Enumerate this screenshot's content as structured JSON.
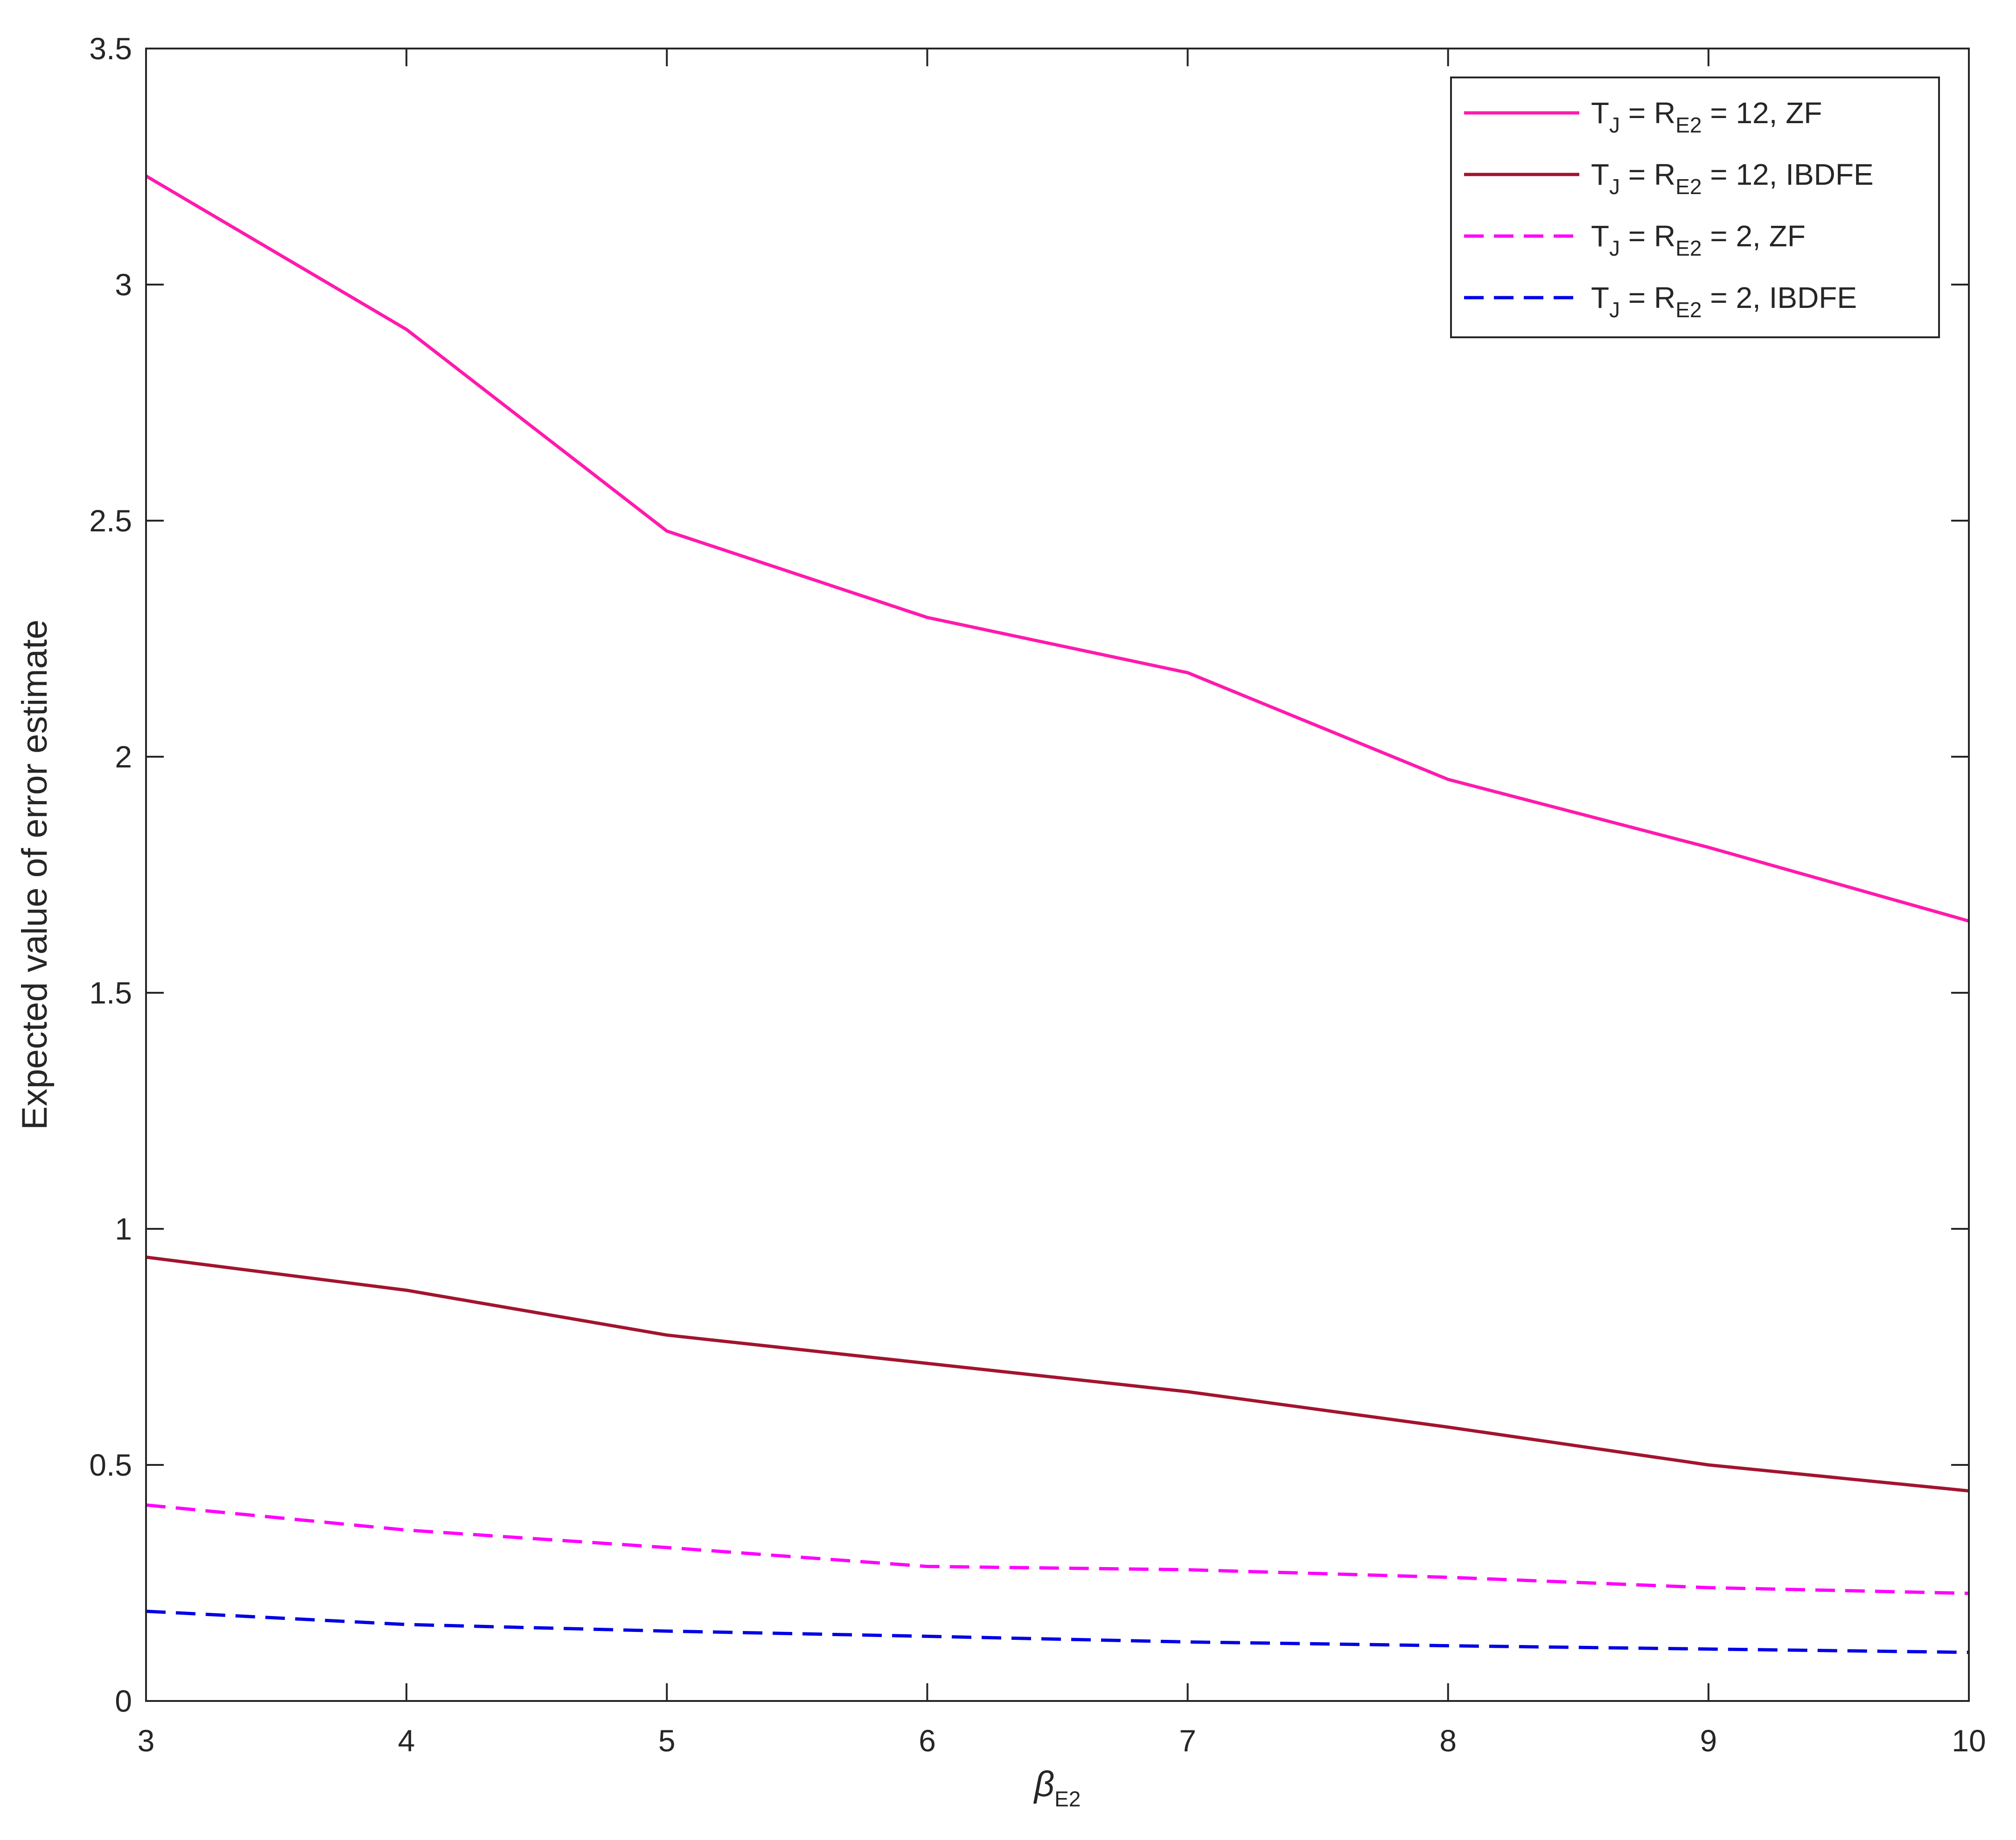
{
  "chart_data": {
    "type": "line",
    "title": "",
    "xlabel": {
      "symbol": "β",
      "subscript": "E2"
    },
    "ylabel": "Expected value of error estimate",
    "xlim": [
      3,
      10
    ],
    "ylim": [
      0,
      3.5
    ],
    "xticks": [
      "3",
      "4",
      "5",
      "6",
      "7",
      "8",
      "9",
      "10"
    ],
    "yticks": [
      "0",
      "0.5",
      "1",
      "1.5",
      "2",
      "2.5",
      "3",
      "3.5"
    ],
    "grid": false,
    "legend_position": "top-right",
    "x": [
      3,
      4,
      5,
      6,
      7,
      8,
      9,
      10
    ],
    "series": [
      {
        "name": "T_J = R_E2 = 12, ZF",
        "legend": {
          "a": "T",
          "a_sub": "J",
          "b": " = R",
          "b_sub": "E2",
          "c": " = 12, ZF"
        },
        "color": "#FF1AAD",
        "dashed": false,
        "values": [
          3.23,
          2.905,
          2.478,
          2.295,
          2.178,
          1.952,
          1.808,
          1.652
        ]
      },
      {
        "name": "T_J = R_E2 = 12, IBDFE",
        "legend": {
          "a": "T",
          "a_sub": "J",
          "b": " = R",
          "b_sub": "E2",
          "c": " = 12, IBDFE"
        },
        "color": "#A2142F",
        "dashed": false,
        "values": [
          0.94,
          0.87,
          0.775,
          0.715,
          0.655,
          0.58,
          0.5,
          0.445
        ]
      },
      {
        "name": "T_J = R_E2 = 2, ZF",
        "legend": {
          "a": "T",
          "a_sub": "J",
          "b": " = R",
          "b_sub": "E2",
          "c": " = 2, ZF"
        },
        "color": "#FF00FF",
        "dashed": true,
        "values": [
          0.415,
          0.362,
          0.325,
          0.285,
          0.278,
          0.262,
          0.24,
          0.228
        ]
      },
      {
        "name": "T_J = R_E2 = 2, IBDFE",
        "legend": {
          "a": "T",
          "a_sub": "J",
          "b": " = R",
          "b_sub": "E2",
          "c": " =  2, IBDFE"
        },
        "color": "#0000E6",
        "dashed": true,
        "values": [
          0.19,
          0.162,
          0.148,
          0.137,
          0.125,
          0.117,
          0.11,
          0.103
        ]
      }
    ]
  }
}
